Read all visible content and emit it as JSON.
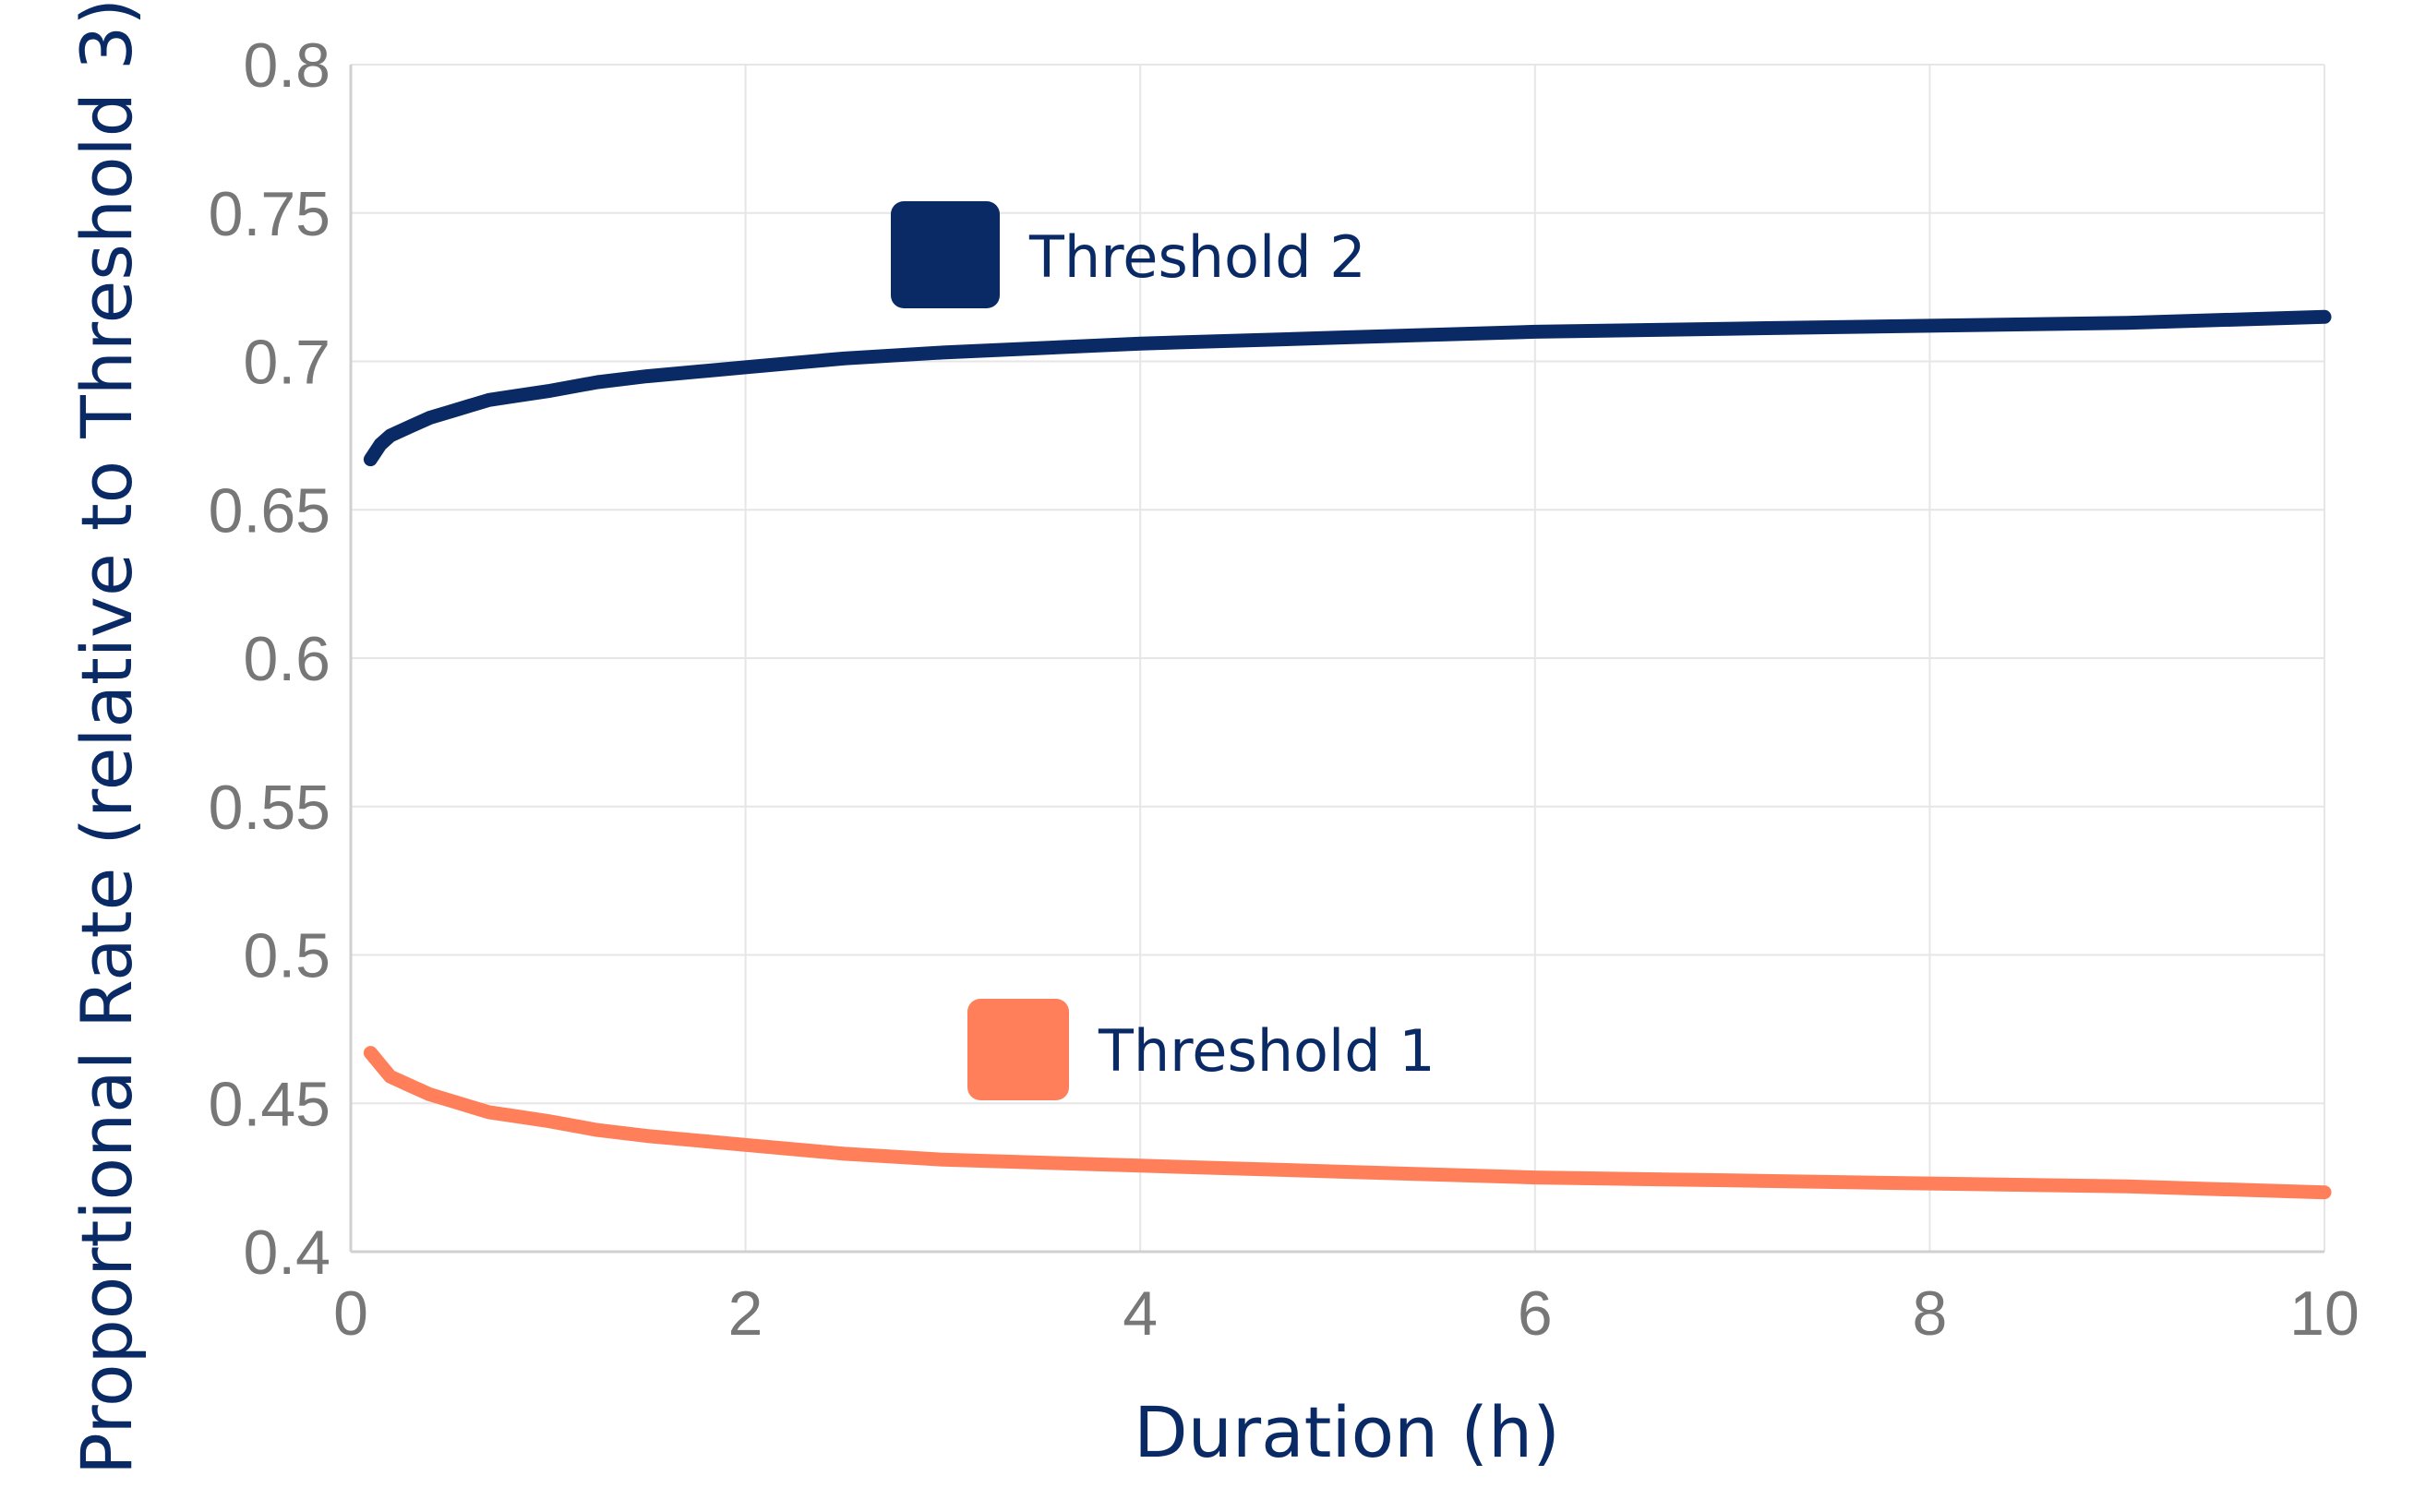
{
  "chart_data": {
    "type": "line",
    "title": "",
    "xlabel": "Duration (h)",
    "ylabel": "Proportional Rate (relative to Threshold 3)",
    "xlim": [
      0,
      10
    ],
    "ylim": [
      0.4,
      0.8
    ],
    "xticks": [
      "0",
      "2",
      "4",
      "6",
      "8",
      "10"
    ],
    "yticks": [
      "0.4",
      "0.45",
      "0.5",
      "0.55",
      "0.6",
      "0.65",
      "0.7",
      "0.75",
      "0.8"
    ],
    "grid": true,
    "legend": "inline labels near each series",
    "series": [
      {
        "name": "Threshold 2",
        "color": "#0a2a66",
        "x": [
          0.1,
          0.15,
          0.2,
          0.3,
          0.4,
          0.5,
          0.6,
          0.7,
          0.8,
          1.0,
          1.25,
          1.5,
          2.0,
          2.5,
          3.0,
          4.0,
          5.0,
          6.0,
          7.0,
          8.0,
          9.0,
          10.0
        ],
        "y": [
          0.667,
          0.672,
          0.675,
          0.678,
          0.681,
          0.683,
          0.685,
          0.687,
          0.688,
          0.69,
          0.693,
          0.695,
          0.698,
          0.701,
          0.703,
          0.706,
          0.708,
          0.71,
          0.711,
          0.712,
          0.713,
          0.715
        ]
      },
      {
        "name": "Threshold 1",
        "color": "#ff7f5a",
        "x": [
          0.1,
          0.15,
          0.2,
          0.3,
          0.4,
          0.5,
          0.6,
          0.7,
          0.8,
          1.0,
          1.25,
          1.5,
          2.0,
          2.5,
          3.0,
          4.0,
          5.0,
          6.0,
          7.0,
          8.0,
          9.0,
          10.0
        ],
        "y": [
          0.467,
          0.463,
          0.459,
          0.456,
          0.453,
          0.451,
          0.449,
          0.447,
          0.446,
          0.444,
          0.441,
          0.439,
          0.436,
          0.433,
          0.431,
          0.429,
          0.427,
          0.425,
          0.424,
          0.423,
          0.422,
          0.42
        ]
      }
    ]
  }
}
